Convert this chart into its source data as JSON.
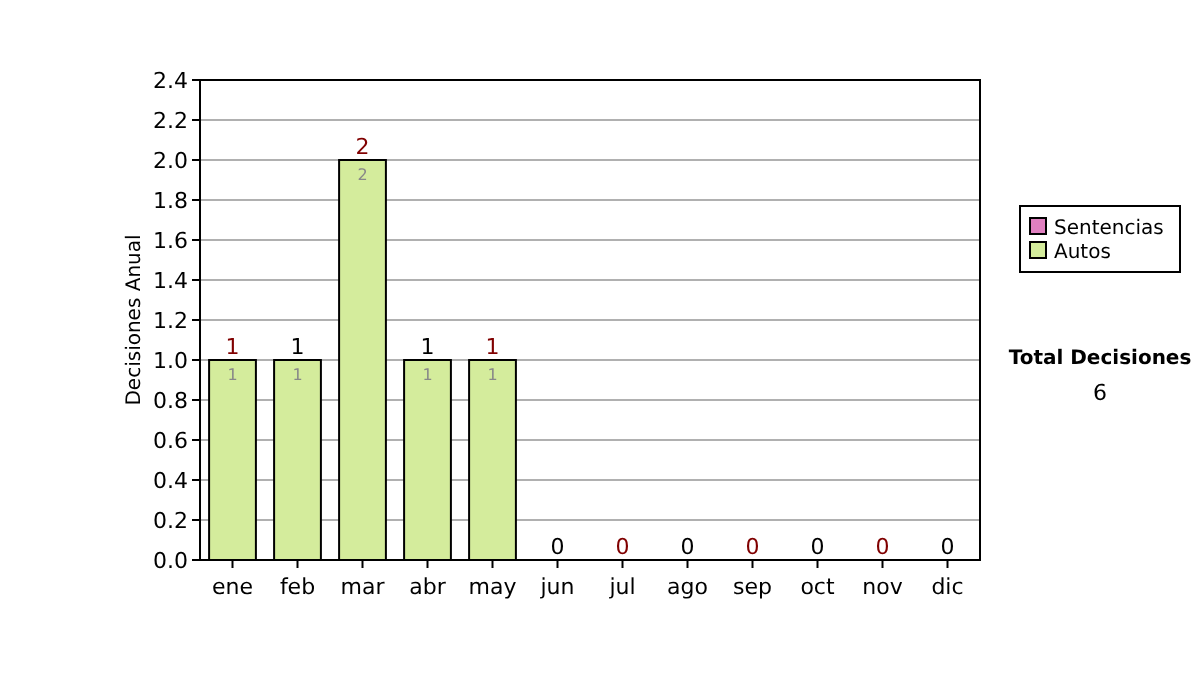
{
  "chart_data": {
    "type": "bar",
    "ylabel": "Decisiones Anual",
    "categories": [
      "ene",
      "feb",
      "mar",
      "abr",
      "may",
      "jun",
      "jul",
      "ago",
      "sep",
      "oct",
      "nov",
      "dic"
    ],
    "series": [
      {
        "name": "Sentencias",
        "color": "#e080c0",
        "values": [
          0,
          0,
          0,
          0,
          0,
          0,
          0,
          0,
          0,
          0,
          0,
          0
        ]
      },
      {
        "name": "Autos",
        "color": "#d4ec9c",
        "values": [
          1,
          1,
          2,
          1,
          1,
          0,
          0,
          0,
          0,
          0,
          0,
          0
        ],
        "value_labels": [
          "1",
          "1",
          "2",
          "1",
          "1",
          null,
          null,
          null,
          null,
          null,
          null,
          null
        ]
      }
    ],
    "stacked": true,
    "totals": [
      "1",
      "1",
      "2",
      "1",
      "1",
      "0",
      "0",
      "0",
      "0",
      "0",
      "0",
      "0"
    ],
    "ylim": [
      0,
      2.4
    ],
    "yticks": [
      {
        "value": 0,
        "label": "0.0"
      },
      {
        "value": 0.2,
        "label": "0.2"
      },
      {
        "value": 0.4,
        "label": "0.4"
      },
      {
        "value": 0.6,
        "label": "0.6"
      },
      {
        "value": 0.8,
        "label": "0.8"
      },
      {
        "value": 1,
        "label": "1.0"
      },
      {
        "value": 1.2,
        "label": "1.2"
      },
      {
        "value": 1.4,
        "label": "1.4"
      },
      {
        "value": 1.6,
        "label": "1.6"
      },
      {
        "value": 1.8,
        "label": "1.8"
      },
      {
        "value": 2,
        "label": "2.0"
      },
      {
        "value": 2.2,
        "label": "2.2"
      },
      {
        "value": 2.4,
        "label": "2.4"
      }
    ],
    "grid": "y",
    "legend": "right",
    "annotations": [
      "Total Decisiones",
      "6"
    ]
  }
}
